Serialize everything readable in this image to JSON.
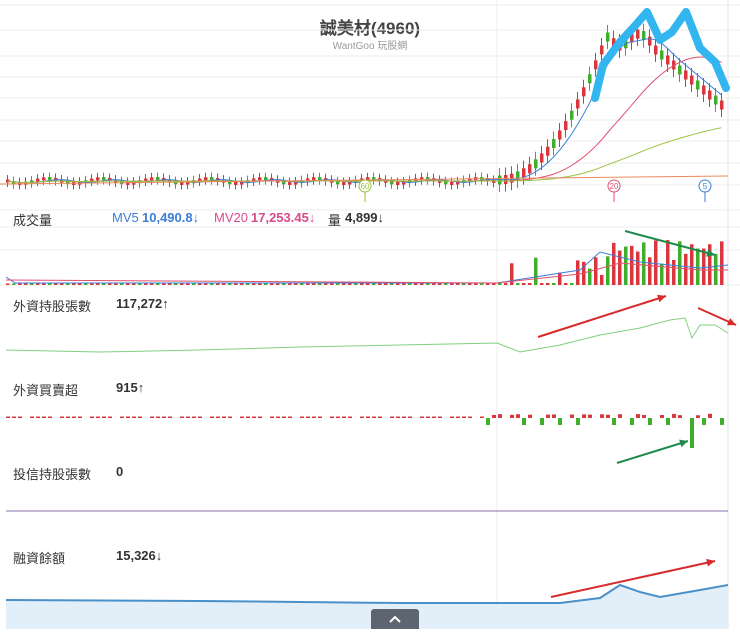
{
  "header": {
    "title": "誠美材(4960)",
    "subtitle": "WantGoo 玩股網"
  },
  "panels": {
    "volume": {
      "label": "成交量",
      "mv5_label": "MV5",
      "mv5_value": "10,490.8↓",
      "mv20_label": "MV20",
      "mv20_value": "17,253.45↓",
      "vol_label": "量",
      "vol_value": "4,899↓"
    },
    "foreign_holding": {
      "label": "外資持股張數",
      "value": "117,272↑"
    },
    "foreign_net": {
      "label": "外資買賣超",
      "value": "915↑"
    },
    "trust_holding": {
      "label": "投信持股張數",
      "value": "0"
    },
    "margin": {
      "label": "融資餘額",
      "value": "15,326↓"
    }
  },
  "markers": {
    "ma60": "60",
    "ma20": "20",
    "ma5": "5"
  },
  "colors": {
    "up": "#d9363e",
    "down": "#3fae2a",
    "ma5": "#3b7dd8",
    "ma20": "#e0506e",
    "ma60": "#9ac23c",
    "foreign": "#7fd07f",
    "margin": "#4a90c8",
    "annotation_red": "#d92b2b",
    "annotation_green": "#1f8a4c",
    "annotation_blue": "#33b5f0"
  },
  "chart_data": {
    "type": "candlestick",
    "price_series": {
      "trend_before_rally": "flat",
      "note_values": [
        "MV5",
        "MV20"
      ]
    },
    "volume": {
      "mv5": 10490.8,
      "mv20": 17253.45,
      "last": 4899
    },
    "foreign_holding_last": 117272,
    "foreign_net_last": 915,
    "trust_holding_last": 0,
    "margin_last": 15326
  }
}
